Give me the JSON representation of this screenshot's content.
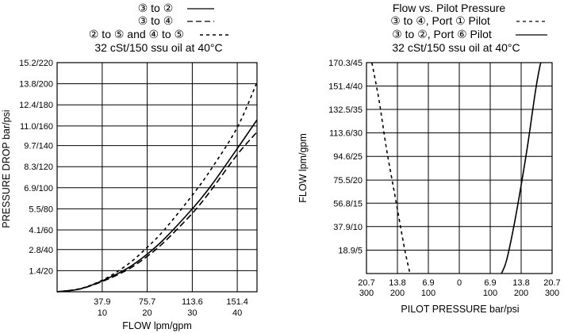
{
  "chart_data": [
    {
      "type": "line",
      "title_lines": [
        "32 cSt/150 ssu oil at 40°C"
      ],
      "legend": [
        {
          "label": "③ to ②",
          "style": "solid"
        },
        {
          "label": "③ to ④",
          "style": "longdash"
        },
        {
          "label": "② to ⑤ and ④ to ⑤",
          "style": "shortdash"
        }
      ],
      "xlabel": "FLOW lpm/gpm",
      "ylabel": "PRESSURE DROP bar/psi",
      "xlim": [
        0,
        168
      ],
      "ylim": [
        0,
        15.2
      ],
      "x_ticks": [
        {
          "value": 37.9,
          "top": "37.9",
          "bottom": "10"
        },
        {
          "value": 75.7,
          "top": "75.7",
          "bottom": "20"
        },
        {
          "value": 113.6,
          "top": "113.6",
          "bottom": "30"
        },
        {
          "value": 151.4,
          "top": "151.4",
          "bottom": "40"
        }
      ],
      "y_ticks": [
        {
          "value": 1.4,
          "label": "1.4/20"
        },
        {
          "value": 2.8,
          "label": "2.8/40"
        },
        {
          "value": 4.1,
          "label": "4.1/60"
        },
        {
          "value": 5.5,
          "label": "5.5/80"
        },
        {
          "value": 6.9,
          "label": "6.9/100"
        },
        {
          "value": 8.3,
          "label": "8.3/120"
        },
        {
          "value": 9.7,
          "label": "9.7/140"
        },
        {
          "value": 11.0,
          "label": "11.0/160"
        },
        {
          "value": 12.4,
          "label": "12.4/180"
        },
        {
          "value": 13.8,
          "label": "13.8/200"
        },
        {
          "value": 15.2,
          "label": "15.2/220"
        }
      ],
      "series": [
        {
          "style": "solid",
          "points": [
            [
              0,
              0
            ],
            [
              20,
              0.2
            ],
            [
              40,
              0.8
            ],
            [
              60,
              1.6
            ],
            [
              75.7,
              2.5
            ],
            [
              90,
              3.5
            ],
            [
              113.6,
              5.5
            ],
            [
              130,
              7.1
            ],
            [
              151.4,
              9.5
            ],
            [
              168,
              11.4
            ]
          ]
        },
        {
          "style": "longdash",
          "points": [
            [
              0,
              0
            ],
            [
              20,
              0.2
            ],
            [
              40,
              0.75
            ],
            [
              60,
              1.5
            ],
            [
              75.7,
              2.35
            ],
            [
              90,
              3.3
            ],
            [
              113.6,
              5.2
            ],
            [
              130,
              6.8
            ],
            [
              151.4,
              9.1
            ],
            [
              168,
              10.6
            ]
          ]
        },
        {
          "style": "shortdash",
          "points": [
            [
              0,
              0
            ],
            [
              20,
              0.22
            ],
            [
              40,
              0.85
            ],
            [
              60,
              1.85
            ],
            [
              75.7,
              2.95
            ],
            [
              90,
              4.1
            ],
            [
              113.6,
              6.4
            ],
            [
              130,
              8.2
            ],
            [
              151.4,
              10.9
            ],
            [
              168,
              13.9
            ]
          ]
        }
      ]
    },
    {
      "type": "line",
      "title_lines": [
        "Flow vs. Pilot Pressure",
        "32 cSt/150 ssu oil at 40°C"
      ],
      "legend": [
        {
          "label": "③ to ④, Port ① Pilot",
          "style": "shortdash"
        },
        {
          "label": "③ to ②, Port ⑥ Pilot",
          "style": "solid"
        }
      ],
      "xlabel": "PILOT PRESSURE bar/psi",
      "ylabel": "FLOW lpm/gpm",
      "xlim": [
        -20.7,
        20.7
      ],
      "ylim": [
        0,
        170.3
      ],
      "x_ticks": [
        {
          "value": -20.7,
          "top": "20.7",
          "bottom": "300"
        },
        {
          "value": -13.8,
          "top": "13.8",
          "bottom": "200"
        },
        {
          "value": -6.9,
          "top": "6.9",
          "bottom": "100"
        },
        {
          "value": 0,
          "top": "0",
          "bottom": ""
        },
        {
          "value": 6.9,
          "top": "6.9",
          "bottom": "100"
        },
        {
          "value": 13.8,
          "top": "13.8",
          "bottom": "200"
        },
        {
          "value": 20.7,
          "top": "20.7",
          "bottom": "300"
        }
      ],
      "y_ticks": [
        {
          "value": 18.9,
          "label": "18.9/5"
        },
        {
          "value": 37.9,
          "label": "37.9/10"
        },
        {
          "value": 56.8,
          "label": "56.8/15"
        },
        {
          "value": 75.5,
          "label": "75.5/20"
        },
        {
          "value": 94.6,
          "label": "94.6/25"
        },
        {
          "value": 113.6,
          "label": "113.6/30"
        },
        {
          "value": 132.5,
          "label": "132.5/35"
        },
        {
          "value": 151.4,
          "label": "151.4/40"
        },
        {
          "value": 170.3,
          "label": "170.3/45"
        }
      ],
      "series": [
        {
          "style": "shortdash",
          "points": [
            [
              -19.5,
              170.3
            ],
            [
              -17.9,
              140
            ],
            [
              -16.2,
              100
            ],
            [
              -14.2,
              60
            ],
            [
              -12.2,
              20
            ],
            [
              -11.0,
              0
            ]
          ]
        },
        {
          "style": "solid",
          "points": [
            [
              9.4,
              0
            ],
            [
              10.5,
              10
            ],
            [
              12.0,
              35
            ],
            [
              13.5,
              65
            ],
            [
              15.1,
              100
            ],
            [
              16.3,
              130
            ],
            [
              17.1,
              150
            ],
            [
              17.9,
              166
            ],
            [
              18.2,
              170.3
            ]
          ]
        }
      ]
    }
  ]
}
